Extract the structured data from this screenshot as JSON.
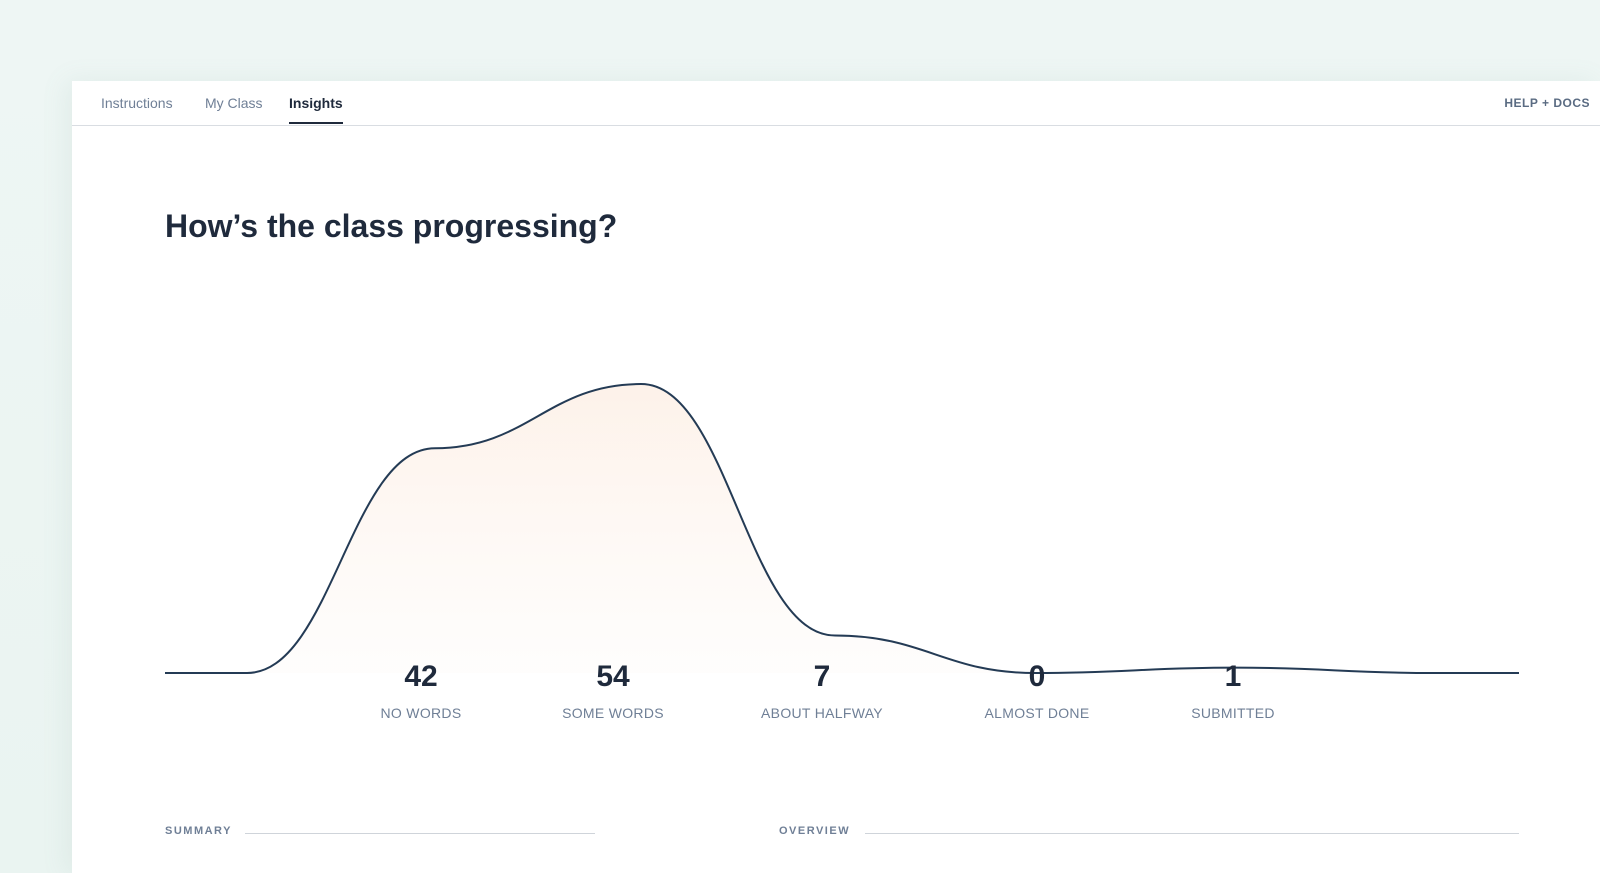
{
  "nav": {
    "tabs": [
      {
        "label": "Instructions"
      },
      {
        "label": "My Class"
      },
      {
        "label": "Insights",
        "active": true
      }
    ],
    "help_label": "HELP + DOCS"
  },
  "page_title": "How’s the class progressing?",
  "progress_stats": [
    {
      "value": "42",
      "label": "NO WORDS"
    },
    {
      "value": "54",
      "label": "SOME WORDS"
    },
    {
      "value": "7",
      "label": "ABOUT HALFWAY"
    },
    {
      "value": "0",
      "label": "ALMOST DONE"
    },
    {
      "value": "1",
      "label": "SUBMITTED"
    }
  ],
  "sections": {
    "summary_label": "SUMMARY",
    "overview_label": "OVERVIEW"
  },
  "chart_data": {
    "type": "area",
    "categories": [
      "NO WORDS",
      "SOME WORDS",
      "ABOUT HALFWAY",
      "ALMOST DONE",
      "SUBMITTED"
    ],
    "values": [
      42,
      54,
      7,
      0,
      1
    ],
    "line_color": "#243b55",
    "fill_color": "#fdf3ec"
  }
}
